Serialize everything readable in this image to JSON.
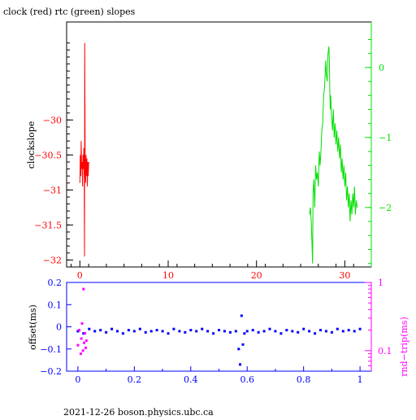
{
  "header": {
    "title": "clock (red) rtc (green) slopes"
  },
  "footer": {
    "caption": "2021-12-26  boson.physics.ubc.ca"
  },
  "colors": {
    "red": "#ff0000",
    "green": "#00e000",
    "blue": "#0000ff",
    "magenta": "#ff00ff",
    "axis": "#000000"
  },
  "chart_data": [
    {
      "type": "line",
      "title": "clock (red) rtc (green) slopes",
      "xlabel": "",
      "ylabel": "clockslope",
      "xlim": [
        -1.5,
        33
      ],
      "ylim": [
        -32.1,
        -28.6
      ],
      "x_ticks": [
        {
          "value": 0,
          "label": "0"
        },
        {
          "value": 10,
          "label": "10"
        },
        {
          "value": 20,
          "label": "20"
        },
        {
          "value": 30,
          "label": "30"
        }
      ],
      "y_ticks_left": [
        {
          "value": -30,
          "label": "−30"
        },
        {
          "value": -30.5,
          "label": "−30.5"
        },
        {
          "value": -31,
          "label": "−31"
        },
        {
          "value": -31.5,
          "label": "−31.5"
        },
        {
          "value": -32,
          "label": "−32"
        }
      ],
      "y2lim": [
        -2.85,
        0.65
      ],
      "y_ticks_right": [
        {
          "value": 0,
          "label": "0"
        },
        {
          "value": -1,
          "label": "−1"
        },
        {
          "value": -2,
          "label": "−2"
        }
      ],
      "series": [
        {
          "color": "red",
          "axis": "left",
          "points": [
            [
              0.0,
              -30.9
            ],
            [
              0.05,
              -30.5
            ],
            [
              0.1,
              -30.8
            ],
            [
              0.15,
              -30.3
            ],
            [
              0.2,
              -30.7
            ],
            [
              0.25,
              -30.6
            ],
            [
              0.3,
              -30.95
            ],
            [
              0.35,
              -30.5
            ],
            [
              0.4,
              -30.7
            ],
            [
              0.45,
              -30.4
            ],
            [
              0.5,
              -30.85
            ],
            [
              0.52,
              -31.95
            ],
            [
              0.55,
              -28.9
            ],
            [
              0.6,
              -30.6
            ],
            [
              0.65,
              -30.9
            ],
            [
              0.7,
              -30.5
            ],
            [
              0.75,
              -30.8
            ],
            [
              0.8,
              -30.55
            ],
            [
              0.85,
              -30.95
            ],
            [
              0.9,
              -30.6
            ],
            [
              0.95,
              -30.8
            ],
            [
              1.0,
              -30.6
            ]
          ]
        },
        {
          "color": "green",
          "axis": "right",
          "points": [
            [
              26.0,
              -2.1
            ],
            [
              26.1,
              -2.0
            ],
            [
              26.2,
              -2.2
            ],
            [
              26.3,
              -2.6
            ],
            [
              26.35,
              -2.8
            ],
            [
              26.4,
              -1.8
            ],
            [
              26.5,
              -1.6
            ],
            [
              26.6,
              -2.0
            ],
            [
              26.7,
              -1.4
            ],
            [
              26.8,
              -1.6
            ],
            [
              26.9,
              -1.5
            ],
            [
              27.0,
              -1.7
            ],
            [
              27.1,
              -1.2
            ],
            [
              27.2,
              -1.4
            ],
            [
              27.3,
              -1.2
            ],
            [
              27.4,
              -0.9
            ],
            [
              27.5,
              -0.8
            ],
            [
              27.6,
              -0.4
            ],
            [
              27.7,
              -0.3
            ],
            [
              27.8,
              0.0
            ],
            [
              27.85,
              0.1
            ],
            [
              27.9,
              -0.1
            ],
            [
              28.0,
              -0.2
            ],
            [
              28.1,
              0.2
            ],
            [
              28.2,
              0.3
            ],
            [
              28.25,
              0.1
            ],
            [
              28.3,
              -0.3
            ],
            [
              28.35,
              -0.6
            ],
            [
              28.4,
              -0.4
            ],
            [
              28.5,
              -0.7
            ],
            [
              28.6,
              -0.9
            ],
            [
              28.7,
              -0.6
            ],
            [
              28.8,
              -1.0
            ],
            [
              28.9,
              -0.8
            ],
            [
              29.0,
              -1.1
            ],
            [
              29.1,
              -0.9
            ],
            [
              29.2,
              -1.2
            ],
            [
              29.3,
              -1.0
            ],
            [
              29.4,
              -1.3
            ],
            [
              29.5,
              -1.1
            ],
            [
              29.6,
              -1.5
            ],
            [
              29.7,
              -1.3
            ],
            [
              29.8,
              -1.6
            ],
            [
              29.9,
              -1.4
            ],
            [
              30.0,
              -1.7
            ],
            [
              30.1,
              -1.5
            ],
            [
              30.2,
              -1.9
            ],
            [
              30.3,
              -1.7
            ],
            [
              30.4,
              -2.0
            ],
            [
              30.5,
              -1.8
            ],
            [
              30.6,
              -2.2
            ],
            [
              30.7,
              -1.9
            ],
            [
              30.8,
              -2.1
            ],
            [
              30.9,
              -1.8
            ],
            [
              31.0,
              -2.0
            ],
            [
              31.1,
              -1.7
            ],
            [
              31.2,
              -2.1
            ],
            [
              31.3,
              -1.9
            ],
            [
              31.4,
              -2.0
            ]
          ]
        }
      ]
    },
    {
      "type": "scatter",
      "xlabel": "",
      "ylabel": "offset(ms)",
      "y2label": "rnd−trip(ms)",
      "xlim": [
        -0.04,
        1.04
      ],
      "ylim": [
        -0.2,
        0.2
      ],
      "x_ticks": [
        {
          "value": 0,
          "label": "0"
        },
        {
          "value": 0.2,
          "label": "0.2"
        },
        {
          "value": 0.4,
          "label": "0.4"
        },
        {
          "value": 0.6,
          "label": "0.6"
        },
        {
          "value": 0.8,
          "label": "0.8"
        },
        {
          "value": 1,
          "label": "1"
        }
      ],
      "y_ticks_left": [
        {
          "value": 0.2,
          "label": "0.2"
        },
        {
          "value": 0.1,
          "label": "0.1"
        },
        {
          "value": 0,
          "label": "0"
        },
        {
          "value": -0.1,
          "label": "−0.1"
        },
        {
          "value": -0.2,
          "label": "−0.2"
        }
      ],
      "y2_scale": "log",
      "y2lim": [
        0.05,
        1
      ],
      "y_ticks_right": [
        {
          "value": 1,
          "label": "1"
        },
        {
          "value": 0.1,
          "label": "0.1"
        }
      ],
      "series": [
        {
          "color": "blue",
          "axis": "left",
          "points": [
            [
              0.0,
              -0.02
            ],
            [
              0.02,
              -0.03
            ],
            [
              0.04,
              -0.01
            ],
            [
              0.06,
              -0.02
            ],
            [
              0.08,
              -0.015
            ],
            [
              0.1,
              -0.025
            ],
            [
              0.12,
              -0.01
            ],
            [
              0.14,
              -0.02
            ],
            [
              0.16,
              -0.03
            ],
            [
              0.18,
              -0.015
            ],
            [
              0.2,
              -0.02
            ],
            [
              0.22,
              -0.01
            ],
            [
              0.24,
              -0.025
            ],
            [
              0.26,
              -0.02
            ],
            [
              0.28,
              -0.015
            ],
            [
              0.3,
              -0.02
            ],
            [
              0.32,
              -0.03
            ],
            [
              0.34,
              -0.01
            ],
            [
              0.36,
              -0.02
            ],
            [
              0.38,
              -0.025
            ],
            [
              0.4,
              -0.015
            ],
            [
              0.42,
              -0.02
            ],
            [
              0.44,
              -0.01
            ],
            [
              0.46,
              -0.02
            ],
            [
              0.48,
              -0.03
            ],
            [
              0.5,
              -0.015
            ],
            [
              0.52,
              -0.02
            ],
            [
              0.54,
              -0.025
            ],
            [
              0.56,
              -0.02
            ],
            [
              0.57,
              -0.1
            ],
            [
              0.575,
              -0.17
            ],
            [
              0.58,
              0.05
            ],
            [
              0.585,
              -0.08
            ],
            [
              0.59,
              -0.03
            ],
            [
              0.6,
              -0.02
            ],
            [
              0.62,
              -0.015
            ],
            [
              0.64,
              -0.025
            ],
            [
              0.66,
              -0.02
            ],
            [
              0.68,
              -0.01
            ],
            [
              0.7,
              -0.02
            ],
            [
              0.72,
              -0.03
            ],
            [
              0.74,
              -0.015
            ],
            [
              0.76,
              -0.02
            ],
            [
              0.78,
              -0.025
            ],
            [
              0.8,
              -0.01
            ],
            [
              0.82,
              -0.02
            ],
            [
              0.84,
              -0.03
            ],
            [
              0.86,
              -0.015
            ],
            [
              0.88,
              -0.02
            ],
            [
              0.9,
              -0.025
            ],
            [
              0.92,
              -0.01
            ],
            [
              0.94,
              -0.02
            ],
            [
              0.96,
              -0.015
            ],
            [
              0.98,
              -0.02
            ],
            [
              1.0,
              -0.01
            ]
          ]
        },
        {
          "color": "magenta",
          "axis": "right",
          "points": [
            [
              0.0,
              0.12
            ],
            [
              0.005,
              0.2
            ],
            [
              0.01,
              0.09
            ],
            [
              0.012,
              0.15
            ],
            [
              0.015,
              0.25
            ],
            [
              0.018,
              0.1
            ],
            [
              0.02,
              0.8
            ],
            [
              0.022,
              0.13
            ],
            [
              0.025,
              0.18
            ],
            [
              0.028,
              0.11
            ],
            [
              0.03,
              0.14
            ]
          ]
        }
      ]
    }
  ]
}
